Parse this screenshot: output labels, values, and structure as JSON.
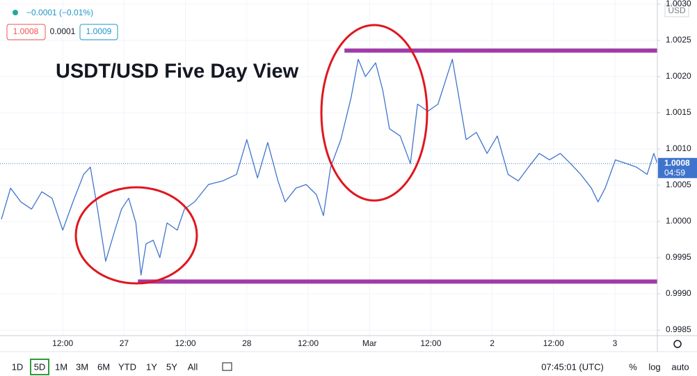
{
  "chart_data": {
    "type": "line",
    "title": "USDT/USD Five Day View",
    "header": {
      "change": "−0.0001 (−0.01%)",
      "bid": "1.0008",
      "spread": "0.0001",
      "ask": "1.0009"
    },
    "currency": "USD",
    "last_value": 1.0008,
    "countdown": "04:59",
    "x": [
      0,
      1.8,
      3.8,
      5.9,
      7.9,
      9.9,
      12,
      14,
      16.1,
      17.4,
      18.8,
      20.4,
      22.2,
      23.5,
      24.9,
      26.3,
      27.3,
      28.3,
      29.7,
      31,
      32.4,
      34.4,
      35.8,
      37.8,
      40.5,
      43.3,
      46,
      48,
      50.1,
      52.1,
      54.1,
      55.5,
      57.6,
      59.6,
      61.6,
      63,
      64.4,
      66.4,
      68.4,
      69.8,
      71.2,
      73.2,
      74.6,
      75.9,
      78,
      80,
      81.4,
      83.4,
      85.4,
      88.2,
      89.5,
      90.9,
      92.9,
      95,
      97,
      99.1,
      101.1,
      103.1,
      105.2,
      107.2,
      109.3,
      111.3,
      113.3,
      115.4,
      116.7,
      118.1,
      120.1,
      122.2,
      124.2,
      126.3,
      127.6,
      128.3
    ],
    "series": [
      {
        "name": "USDT/USD",
        "color": "#3f74cc",
        "values": [
          1.00003,
          1.00046,
          1.00027,
          1.00017,
          1.00041,
          1.00032,
          0.99988,
          1.00027,
          1.00065,
          1.00075,
          1.00017,
          0.99945,
          0.99988,
          1.00017,
          1.00032,
          0.99998,
          0.99926,
          0.99969,
          0.99974,
          0.9995,
          0.99998,
          0.99988,
          1.00017,
          1.00027,
          1.00051,
          1.00056,
          1.00065,
          1.00113,
          1.0006,
          1.00109,
          1.00056,
          1.00027,
          1.00046,
          1.00051,
          1.00037,
          1.00008,
          1.00075,
          1.00113,
          1.00171,
          1.00224,
          1.002,
          1.00219,
          1.00181,
          1.00128,
          1.00118,
          1.0008,
          1.00162,
          1.00152,
          1.00162,
          1.00224,
          1.00171,
          1.00113,
          1.00123,
          1.00094,
          1.00118,
          1.00065,
          1.00056,
          1.00075,
          1.00094,
          1.00085,
          1.00094,
          1.0008,
          1.00065,
          1.00046,
          1.00027,
          1.00046,
          1.00085,
          1.0008,
          1.00075,
          1.00065,
          1.00094,
          1.0008
        ]
      }
    ],
    "levels": [
      {
        "value": 1.00236,
        "from_x": 67.1,
        "color": "#a03aa8"
      },
      {
        "value": 0.99917,
        "from_x": 26.7,
        "color": "#a03aa8"
      }
    ],
    "xlim": [
      0,
      128.3
    ],
    "ylim": [
      0.998423,
      1.003058
    ],
    "xticks": [
      {
        "value": 12,
        "label": "12:00"
      },
      {
        "value": 24,
        "label": "27"
      },
      {
        "value": 36,
        "label": "12:00"
      },
      {
        "value": 48,
        "label": "28"
      },
      {
        "value": 60,
        "label": "12:00"
      },
      {
        "value": 72,
        "label": "Mar"
      },
      {
        "value": 84,
        "label": "12:00"
      },
      {
        "value": 96,
        "label": "2"
      },
      {
        "value": 108,
        "label": "12:00"
      },
      {
        "value": 120,
        "label": "3"
      }
    ],
    "yticks": [
      {
        "value": 0.9985,
        "label": "0.9985"
      },
      {
        "value": 0.999,
        "label": "0.9990"
      },
      0.9995,
      {
        "value": 1,
        "label": "1.0000"
      },
      1.0005,
      {
        "value": 1.001,
        "label": "1.0010"
      },
      1.0015,
      {
        "value": 1.002,
        "label": "1.0020"
      },
      1.0025,
      {
        "value": 1.003,
        "label": "1.0030"
      }
    ],
    "grid": true,
    "toolbar": {
      "ranges": [
        "1D",
        "5D",
        "1M",
        "3M",
        "6M",
        "YTD",
        "1Y",
        "5Y",
        "All"
      ],
      "active": "5D",
      "time": "07:45:01 (UTC)",
      "options": [
        "%",
        "log",
        "auto"
      ]
    }
  }
}
